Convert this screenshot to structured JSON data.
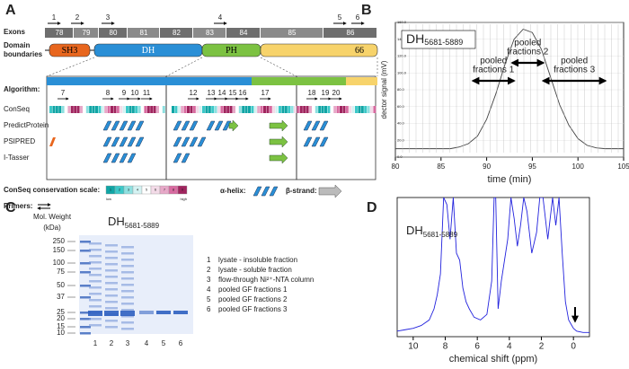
{
  "panel_a": {
    "label": "A",
    "exons_label": "Exons",
    "exons": [
      "78",
      "79",
      "80",
      "81",
      "82",
      "83",
      "84",
      "85",
      "86"
    ],
    "exon_primers": [
      "1",
      "2",
      "3",
      "4",
      "5",
      "6"
    ],
    "domain_label": [
      "Domain",
      "boundaries"
    ],
    "domains": [
      "SH3",
      "DH",
      "PH",
      "66"
    ],
    "algorithm_label": "Algorithm:",
    "algorithms": [
      "ConSeq",
      "PredictProtein",
      "PSIPRED",
      "I-Tasser"
    ],
    "segment_primers": [
      "7",
      "8",
      "9",
      "10",
      "11",
      "12",
      "13",
      "14",
      "15",
      "16",
      "17",
      "18",
      "19",
      "20"
    ],
    "conseq_scale_label": "ConSeq conservation scale:",
    "scale_numbers": [
      "1",
      "2",
      "3",
      "4",
      "5",
      "6",
      "7",
      "8",
      "9"
    ],
    "scale_low": "low",
    "scale_high": "high",
    "alpha_helix": "α-helix:",
    "beta_strand": "β-strand:",
    "primers_label": "Primers:"
  },
  "panel_b": {
    "label": "B",
    "chart_data": {
      "type": "line",
      "title": "DH",
      "title_subscript": "5681-5889",
      "x_label": "time (min)",
      "y_label": "dector signal (mV)",
      "x": [
        80,
        81,
        82,
        83,
        84,
        85,
        86,
        87,
        88,
        89,
        90,
        91,
        92,
        93,
        94,
        95,
        96,
        97,
        98,
        99,
        100,
        101,
        102,
        103,
        104,
        105
      ],
      "values": [
        10,
        10,
        10,
        10,
        10,
        10,
        10,
        12,
        16,
        25,
        45,
        75,
        110,
        140,
        152,
        148,
        128,
        95,
        62,
        38,
        22,
        14,
        11,
        10,
        10,
        10
      ],
      "color": "#444444",
      "xlim": [
        80,
        105
      ],
      "xticks": [
        80,
        85,
        90,
        95,
        100,
        105
      ],
      "ylim": [
        0,
        160
      ],
      "yticks": [
        {
          "value": 0,
          "label": "0.0"
        },
        {
          "value": 20,
          "label": "20.0"
        },
        {
          "value": 40,
          "label": "40.0"
        },
        {
          "value": 60,
          "label": "60.0"
        },
        {
          "value": 80,
          "label": "80.0"
        },
        {
          "value": 100,
          "label": "100.0"
        },
        {
          "value": 120,
          "label": "120.0"
        },
        {
          "value": 140,
          "label": "140.0"
        },
        {
          "value": 160,
          "label": "160.0"
        }
      ],
      "annotations": [
        {
          "text": [
            "pooled",
            "fractions 1"
          ],
          "from": 88.5,
          "to": 93
        },
        {
          "text": [
            "pooled",
            "fractions 2"
          ],
          "from": 92.8,
          "to": 96.2
        },
        {
          "text": [
            "pooled",
            "fractions 3"
          ],
          "from": 96.2,
          "to": 103
        }
      ]
    }
  },
  "panel_c": {
    "label": "C",
    "title": "DH",
    "title_subscript": "5681-5889",
    "mw_label": [
      "Mol. Weight",
      "(kDa)"
    ],
    "markers": [
      "250",
      "150",
      "100",
      "75",
      "50",
      "37",
      "25",
      "20",
      "15",
      "10"
    ],
    "lanes": [
      "1",
      "2",
      "3",
      "4",
      "5",
      "6"
    ],
    "legend": [
      [
        "1",
        "lysate - insoluble fraction"
      ],
      [
        "2",
        "lysate - soluble fraction"
      ],
      [
        "3",
        "flow-through Ni²⁺-NTA column"
      ],
      [
        "4",
        "pooled GF fractions 1"
      ],
      [
        "5",
        "pooled GF fractions 2"
      ],
      [
        "6",
        "pooled GF fractions 3"
      ]
    ]
  },
  "panel_d": {
    "label": "D",
    "chart_data": {
      "type": "line",
      "title": "DH",
      "title_subscript": "5681-5889",
      "x_label": "chemical shift (ppm)",
      "x": [
        11,
        10.5,
        10,
        9.5,
        9,
        8.7,
        8.5,
        8.3,
        8.1,
        7.9,
        7.7,
        7.5,
        7.3,
        7.1,
        6.9,
        6.7,
        6.5,
        6.2,
        5.8,
        5.4,
        5.1,
        4.95,
        4.85,
        4.7,
        4.5,
        4.3,
        4.1,
        3.9,
        3.7,
        3.5,
        3.3,
        3.1,
        2.9,
        2.6,
        2.3,
        2.1,
        1.9,
        1.6,
        1.3,
        1.1,
        0.9,
        0.7,
        0.5,
        0.3,
        0.1,
        0,
        -0.2,
        -0.6,
        -1
      ],
      "values": [
        4,
        5,
        6,
        8,
        12,
        20,
        30,
        45,
        100,
        95,
        70,
        100,
        60,
        55,
        35,
        25,
        20,
        14,
        12,
        16,
        40,
        100,
        100,
        20,
        40,
        55,
        70,
        100,
        85,
        65,
        80,
        100,
        90,
        60,
        75,
        100,
        100,
        70,
        100,
        80,
        100,
        60,
        25,
        12,
        8,
        6,
        4,
        3,
        3
      ],
      "color": "#2222dd",
      "xlim": [
        11,
        -1
      ],
      "xticks": [
        10,
        8,
        6,
        4,
        2,
        0
      ],
      "ylim": [
        0,
        100
      ]
    }
  }
}
